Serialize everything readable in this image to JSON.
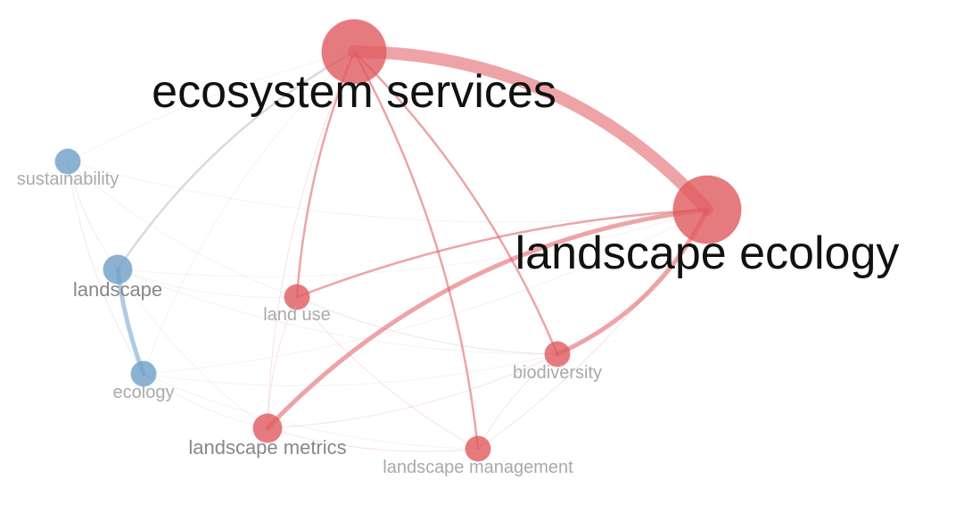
{
  "network": {
    "clusters": [
      {
        "id": "red",
        "color": "#e05a5f"
      },
      {
        "id": "blue",
        "color": "#6f9fc8"
      }
    ],
    "nodes": [
      {
        "id": "ecosystem-services",
        "label": "ecosystem services",
        "cluster": "red",
        "weight": 5
      },
      {
        "id": "landscape-ecology",
        "label": "landscape ecology",
        "cluster": "red",
        "weight": 5
      },
      {
        "id": "sustainability",
        "label": "sustainability",
        "cluster": "blue",
        "weight": 1
      },
      {
        "id": "landscape",
        "label": "landscape",
        "cluster": "blue",
        "weight": 2
      },
      {
        "id": "land-use",
        "label": "land use",
        "cluster": "red",
        "weight": 1
      },
      {
        "id": "ecology",
        "label": "ecology",
        "cluster": "blue",
        "weight": 1
      },
      {
        "id": "biodiversity",
        "label": "biodiversity",
        "cluster": "red",
        "weight": 1
      },
      {
        "id": "landscape-metrics",
        "label": "landscape metrics",
        "cluster": "red",
        "weight": 2
      },
      {
        "id": "landscape-management",
        "label": "landscape management",
        "cluster": "red",
        "weight": 1
      }
    ],
    "links": [
      {
        "source": "ecosystem-services",
        "target": "landscape-ecology",
        "strength": 5
      },
      {
        "source": "landscape-metrics",
        "target": "landscape-ecology",
        "strength": 3
      },
      {
        "source": "biodiversity",
        "target": "landscape-ecology",
        "strength": 3
      },
      {
        "source": "land-use",
        "target": "landscape-ecology",
        "strength": 2
      },
      {
        "source": "ecosystem-services",
        "target": "land-use",
        "strength": 2
      },
      {
        "source": "ecosystem-services",
        "target": "biodiversity",
        "strength": 2
      },
      {
        "source": "ecosystem-services",
        "target": "landscape-management",
        "strength": 2
      },
      {
        "source": "landscape",
        "target": "ecology",
        "strength": 3
      },
      {
        "source": "ecosystem-services",
        "target": "landscape",
        "strength": 2
      },
      {
        "source": "ecosystem-services",
        "target": "ecology",
        "strength": 1
      },
      {
        "source": "ecosystem-services",
        "target": "sustainability",
        "strength": 1
      },
      {
        "source": "ecosystem-services",
        "target": "landscape-metrics",
        "strength": 1
      },
      {
        "source": "sustainability",
        "target": "landscape-ecology",
        "strength": 1
      },
      {
        "source": "sustainability",
        "target": "landscape",
        "strength": 1
      },
      {
        "source": "sustainability",
        "target": "ecology",
        "strength": 1
      },
      {
        "source": "sustainability",
        "target": "land-use",
        "strength": 1
      },
      {
        "source": "landscape",
        "target": "landscape-ecology",
        "strength": 1
      },
      {
        "source": "landscape",
        "target": "land-use",
        "strength": 1
      },
      {
        "source": "landscape",
        "target": "biodiversity",
        "strength": 1
      },
      {
        "source": "landscape",
        "target": "landscape-metrics",
        "strength": 1
      },
      {
        "source": "ecology",
        "target": "landscape-ecology",
        "strength": 1
      },
      {
        "source": "ecology",
        "target": "biodiversity",
        "strength": 1
      },
      {
        "source": "ecology",
        "target": "landscape-metrics",
        "strength": 1
      },
      {
        "source": "ecology",
        "target": "landscape-management",
        "strength": 1
      },
      {
        "source": "land-use",
        "target": "biodiversity",
        "strength": 1
      },
      {
        "source": "land-use",
        "target": "landscape-metrics",
        "strength": 1
      },
      {
        "source": "land-use",
        "target": "landscape-management",
        "strength": 1
      },
      {
        "source": "landscape-metrics",
        "target": "landscape-management",
        "strength": 1
      },
      {
        "source": "landscape-metrics",
        "target": "biodiversity",
        "strength": 1
      },
      {
        "source": "biodiversity",
        "target": "landscape-management",
        "strength": 1
      },
      {
        "source": "landscape-management",
        "target": "landscape-ecology",
        "strength": 1
      }
    ]
  }
}
